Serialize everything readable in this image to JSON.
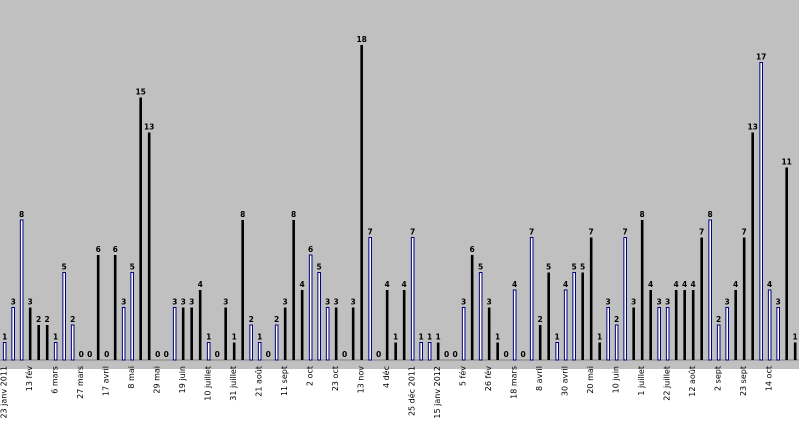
{
  "chart_data": {
    "type": "bar",
    "title": "",
    "xlabel": "",
    "ylabel": "",
    "ylim": [
      0,
      19
    ],
    "grid": false,
    "legend": "none",
    "colors": {
      "plot_background": "#c0c0c0",
      "bar_dark": "#000000",
      "bar_light_fill": "#ffffff",
      "bar_light_border": "#000080"
    },
    "tick_labels": [
      {
        "index": 0,
        "label": "23 janv 2011"
      },
      {
        "index": 3,
        "label": "13 fév"
      },
      {
        "index": 6,
        "label": "6 mars"
      },
      {
        "index": 9,
        "label": "27 mars"
      },
      {
        "index": 12,
        "label": "17 avril"
      },
      {
        "index": 15,
        "label": "8 mai"
      },
      {
        "index": 18,
        "label": "29 mai"
      },
      {
        "index": 21,
        "label": "19 juin"
      },
      {
        "index": 24,
        "label": "10 juillet"
      },
      {
        "index": 27,
        "label": "31 juillet"
      },
      {
        "index": 30,
        "label": "21 août"
      },
      {
        "index": 33,
        "label": "11 sept"
      },
      {
        "index": 36,
        "label": "2 oct"
      },
      {
        "index": 39,
        "label": "23 oct"
      },
      {
        "index": 42,
        "label": "13 nov"
      },
      {
        "index": 45,
        "label": "4 déc"
      },
      {
        "index": 48,
        "label": "25 déc 2011"
      },
      {
        "index": 51,
        "label": "15 janv 2012"
      },
      {
        "index": 54,
        "label": "5 fév"
      },
      {
        "index": 57,
        "label": "26 fév"
      },
      {
        "index": 60,
        "label": "18 mars"
      },
      {
        "index": 63,
        "label": "8 avril"
      },
      {
        "index": 66,
        "label": "30 avril"
      },
      {
        "index": 69,
        "label": "20 mai"
      },
      {
        "index": 72,
        "label": "10 juin"
      },
      {
        "index": 75,
        "label": "1 juillet"
      },
      {
        "index": 78,
        "label": "22 juillet"
      },
      {
        "index": 81,
        "label": "12 août"
      },
      {
        "index": 84,
        "label": "2 sept"
      },
      {
        "index": 87,
        "label": "23 sept"
      },
      {
        "index": 90,
        "label": "14 oct"
      }
    ],
    "series": [
      {
        "values": [
          1,
          3,
          8,
          3,
          2,
          2,
          1,
          5,
          2,
          0,
          0,
          6,
          0,
          6,
          3,
          5,
          15,
          13,
          0,
          0,
          3,
          3,
          3,
          4,
          1,
          0,
          3,
          1,
          8,
          2,
          1,
          0,
          2,
          3,
          8,
          4,
          6,
          5,
          3,
          3,
          0,
          3,
          18,
          7,
          0,
          4,
          1,
          4,
          7,
          1,
          1,
          1,
          0,
          0,
          3,
          6,
          5,
          3,
          1,
          0,
          4,
          0,
          7,
          2,
          5,
          1,
          4,
          5,
          5,
          7,
          1,
          3,
          2,
          7,
          3,
          8,
          4,
          3,
          3,
          4,
          4,
          4,
          7,
          8,
          2,
          3,
          4,
          7,
          13,
          17,
          4,
          3,
          11,
          1
        ],
        "styles": [
          "L",
          "L",
          "L",
          "D",
          "D",
          "D",
          "L",
          "L",
          "L",
          "D",
          "D",
          "D",
          "D",
          "D",
          "L",
          "L",
          "D",
          "D",
          "D",
          "D",
          "L",
          "D",
          "D",
          "D",
          "L",
          "D",
          "D",
          "D",
          "D",
          "L",
          "L",
          "D",
          "L",
          "D",
          "D",
          "D",
          "L",
          "L",
          "L",
          "D",
          "D",
          "D",
          "D",
          "L",
          "D",
          "D",
          "D",
          "D",
          "L",
          "L",
          "L",
          "D",
          "D",
          "D",
          "L",
          "D",
          "L",
          "D",
          "D",
          "D",
          "L",
          "D",
          "L",
          "D",
          "D",
          "L",
          "L",
          "L",
          "D",
          "D",
          "D",
          "L",
          "L",
          "L",
          "D",
          "D",
          "D",
          "L",
          "L",
          "D",
          "D",
          "D",
          "D",
          "L",
          "L",
          "L",
          "D",
          "D",
          "D",
          "L",
          "L",
          "L",
          "D",
          "D"
        ]
      }
    ]
  }
}
